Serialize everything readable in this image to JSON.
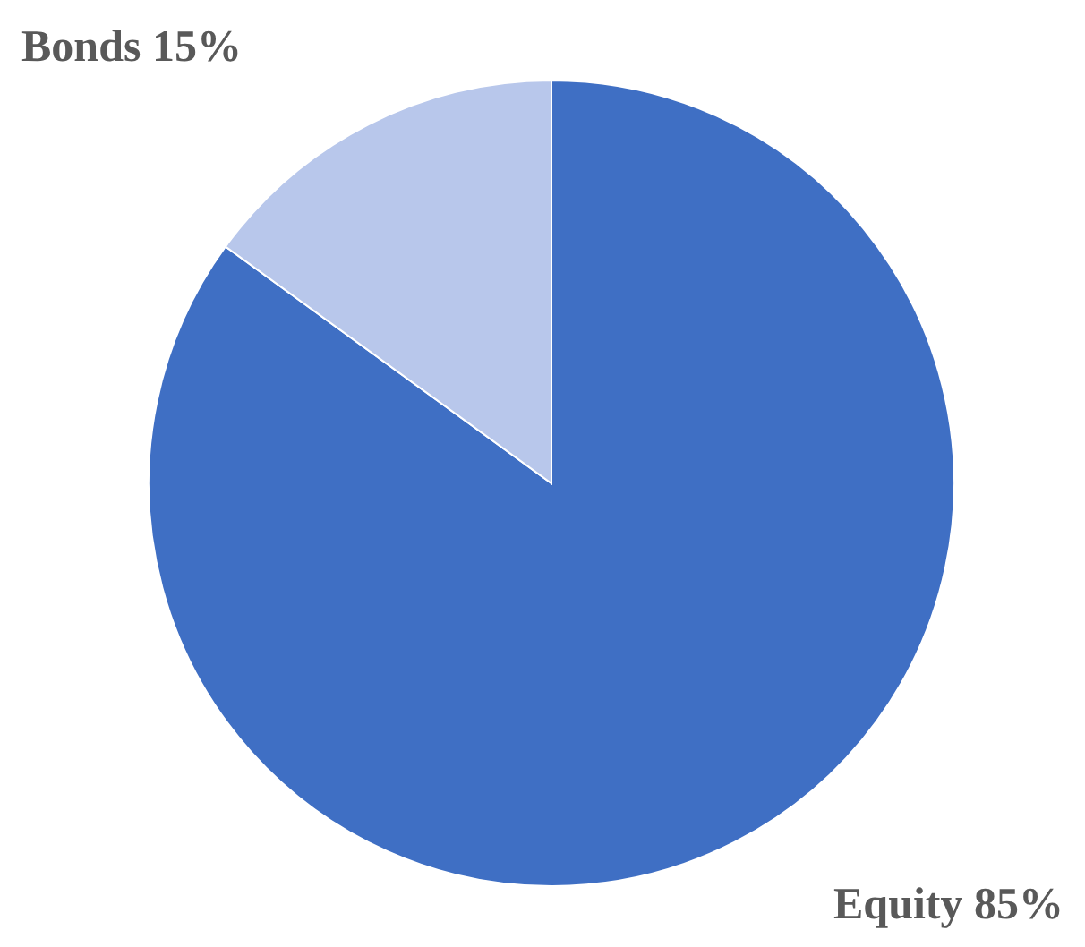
{
  "chart_data": {
    "type": "pie",
    "categories": [
      "Equity",
      "Bonds"
    ],
    "values": [
      85,
      15
    ],
    "colors": [
      "#3f6fc4",
      "#b8c7eb"
    ],
    "value_labels": [
      "85%",
      "15%"
    ]
  }
}
